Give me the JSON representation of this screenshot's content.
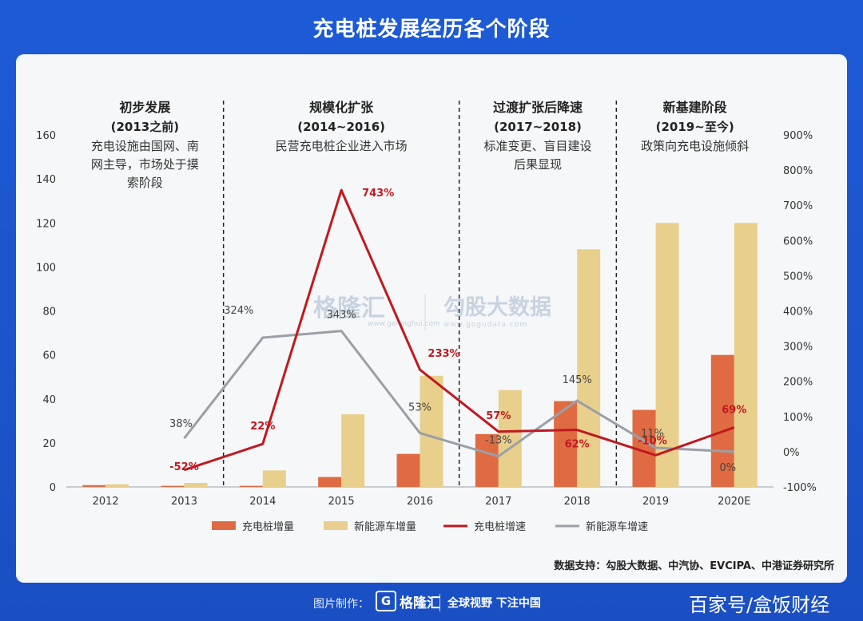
{
  "page_title": "充电桩发展经历各个阶段",
  "chart_data": {
    "type": "bar",
    "categories": [
      "2012",
      "2013",
      "2014",
      "2015",
      "2016",
      "2017",
      "2018",
      "2019",
      "2020E"
    ],
    "ylim": [
      0,
      160
    ],
    "y2lim": [
      -100,
      900
    ],
    "y_ticks": [
      "0",
      "20",
      "40",
      "60",
      "80",
      "100",
      "120",
      "140",
      "160"
    ],
    "y2_ticks": [
      "-100%",
      "0%",
      "100%",
      "200%",
      "300%",
      "400%",
      "500%",
      "600%",
      "700%",
      "800%",
      "900%"
    ],
    "series": [
      {
        "name": "充电桩增量",
        "type": "bar",
        "axis": "left",
        "color": "#e06b42",
        "values": [
          0.8,
          0.5,
          0.5,
          4.5,
          15,
          24,
          39,
          35,
          60
        ]
      },
      {
        "name": "新能源车增量",
        "type": "bar",
        "axis": "left",
        "color": "#e9cf8c",
        "values": [
          1.2,
          1.8,
          7.5,
          33,
          50.5,
          44,
          108,
          120,
          120
        ]
      },
      {
        "name": "充电桩增速",
        "type": "line",
        "axis": "right",
        "color": "#c0191f",
        "values": [
          null,
          -52,
          22,
          743,
          233,
          57,
          62,
          -10,
          69
        ],
        "labels": [
          null,
          "-52%",
          "22%",
          "743%",
          "233%",
          "57%",
          "62%",
          "-10%",
          "69%"
        ]
      },
      {
        "name": "新能源车增速",
        "type": "line",
        "axis": "right",
        "color": "#9aa0a6",
        "values": [
          null,
          38,
          324,
          343,
          53,
          -13,
          145,
          11,
          0
        ],
        "labels": [
          null,
          "38%",
          "324%",
          "343%",
          "53%",
          "-13%",
          "145%",
          "11%",
          "0%"
        ]
      }
    ],
    "stages": [
      {
        "title": "初步发展",
        "period": "(2013之前)",
        "desc": [
          "充电设施由国网、南",
          "网主导，市场处于摸",
          "索阶段"
        ]
      },
      {
        "title": "规模化扩张",
        "period": "(2014~2016)",
        "desc": [
          "民营充电桩企业进入市场"
        ]
      },
      {
        "title": "过渡扩张后降速",
        "period": "(2017~2018)",
        "desc": [
          "标准变更、盲目建设",
          "后果显现"
        ]
      },
      {
        "title": "新基建阶段",
        "period": "(2019~至今)",
        "desc": [
          "政策向充电设施倾斜"
        ]
      }
    ],
    "source": "数据支持：勾股大数据、中汽协、EVCIPA、中港证券研究所",
    "watermark": {
      "left": "格隆汇",
      "left_sub": "www.gelonghui.com",
      "right": "勾股大数据",
      "right_sub": "www.gogudata.com"
    }
  },
  "footer": {
    "made_by": "图片制作：",
    "logo_text": "格隆汇",
    "slogan": "全球视野 下注中国",
    "brand": "百家号/盒饭财经"
  }
}
